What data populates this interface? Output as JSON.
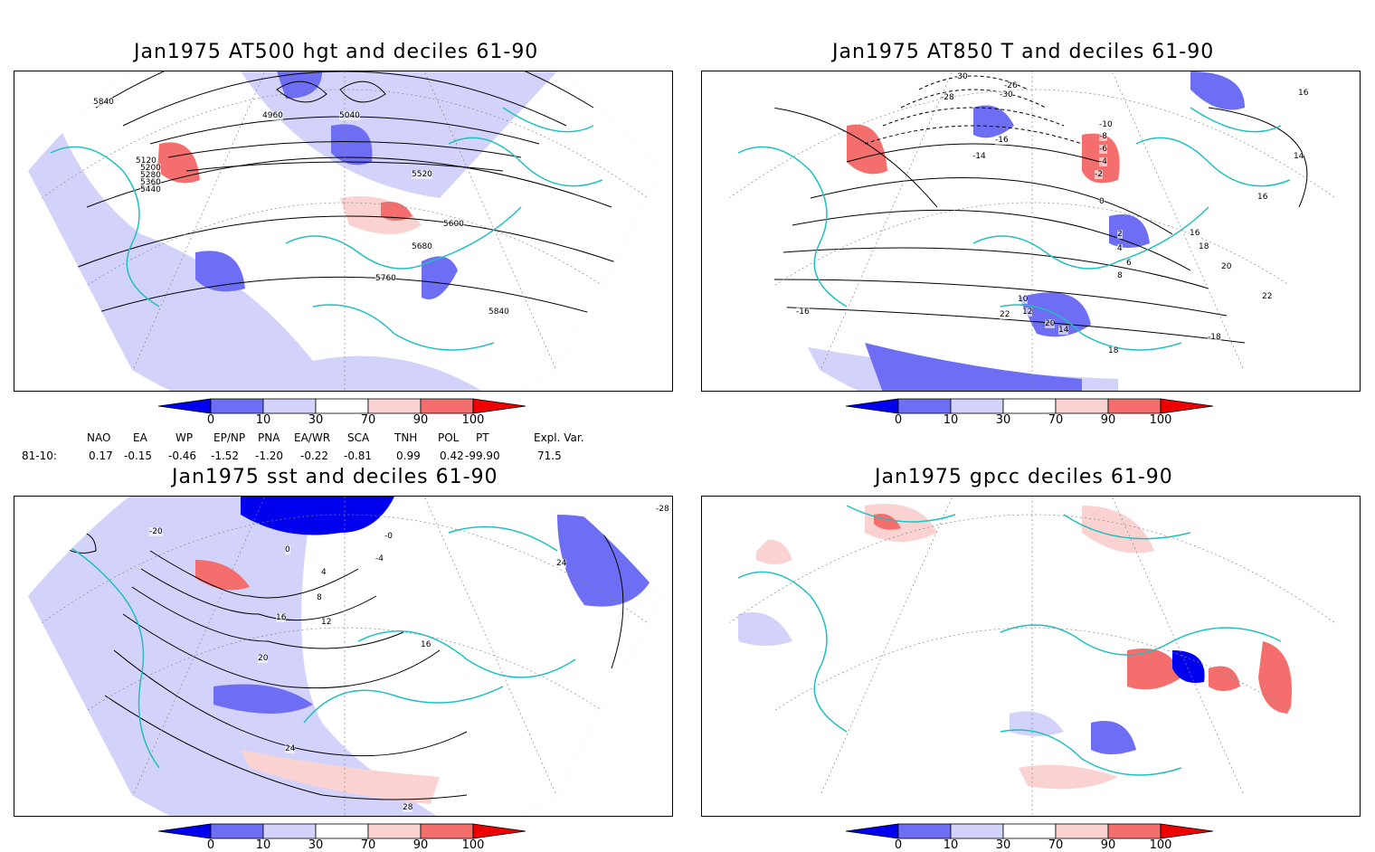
{
  "panels": [
    {
      "title": "Jan1975 AT500 hgt and deciles 61-90",
      "contour_labels": [
        "5840",
        "4960",
        "5040",
        "5120",
        "5200",
        "5280",
        "5360",
        "5440",
        "5520",
        "5600",
        "5680",
        "5760",
        "5840"
      ]
    },
    {
      "title": "Jan1975 AT850 T and deciles 61-90",
      "contour_labels": [
        "-30",
        "-28",
        "-26",
        "-30",
        "-16",
        "-14",
        "-10",
        "-8",
        "-6",
        "-4",
        "-2",
        "0",
        "2",
        "4",
        "6",
        "8",
        "10",
        "12",
        "14",
        "16",
        "18",
        "20",
        "22",
        "14",
        "16",
        "18",
        "20",
        "22",
        "16",
        "-16",
        "-18"
      ]
    },
    {
      "title": "Jan1975 sst and deciles 61-90",
      "contour_labels": [
        "-20",
        "0",
        "4",
        "8",
        "12",
        "16",
        "20",
        "24",
        "28",
        "-4",
        "-0",
        "16",
        "24",
        "-28"
      ]
    },
    {
      "title": "Jan1975 gpcc deciles 61-90",
      "contour_labels": []
    }
  ],
  "colorbar": {
    "labels": [
      "0",
      "10",
      "30",
      "70",
      "90",
      "100"
    ],
    "colors": [
      "#0000ee",
      "#6e6ef5",
      "#d2d2fa",
      "#ffffff",
      "#fad2d2",
      "#f56e6e",
      "#ee0000"
    ]
  },
  "teleconnections": {
    "headers": [
      "NAO",
      "EA",
      "WP",
      "EP/NP",
      "PNA",
      "EA/WR",
      "SCA",
      "TNH",
      "POL",
      "PT",
      "Expl. Var."
    ],
    "row_label": "81-10:",
    "values": [
      "0.17",
      "-0.15",
      "-0.46",
      "-1.52",
      "-1.20",
      "-0.22",
      "-0.81",
      "0.99",
      "0.42",
      "-99.90",
      "71.5"
    ]
  },
  "map_style": {
    "coastline_color": "#20c0c0",
    "contour_color": "#000000",
    "grid_color": "#888888"
  }
}
